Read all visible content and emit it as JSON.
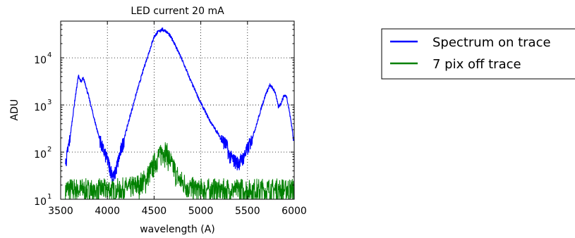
{
  "chart_data": {
    "type": "line",
    "title": "LED current 20 mA",
    "xlabel": "wavelength (A)",
    "ylabel": "ADU",
    "xlim": [
      3500,
      6000
    ],
    "ylim": [
      10,
      60000
    ],
    "yscale": "log",
    "grid": true,
    "legend_placement": "outside-right",
    "x_ticks": [
      3500,
      4000,
      4500,
      5000,
      5500,
      6000
    ],
    "x_tick_labels": [
      "3500",
      "4000",
      "4500",
      "5000",
      "5500",
      "6000"
    ],
    "y_ticks": [
      10,
      100,
      1000,
      10000
    ],
    "y_tick_labels": [
      {
        "base": "10",
        "exp": "1"
      },
      {
        "base": "10",
        "exp": "2"
      },
      {
        "base": "10",
        "exp": "3"
      },
      {
        "base": "10",
        "exp": "4"
      }
    ],
    "series": [
      {
        "name": "Spectrum on trace",
        "color": "#0000ff",
        "x": [
          3550,
          3600,
          3650,
          3690,
          3720,
          3740,
          3760,
          3800,
          3850,
          3900,
          3950,
          4000,
          4040,
          4070,
          4100,
          4150,
          4200,
          4300,
          4400,
          4450,
          4500,
          4540,
          4580,
          4620,
          4650,
          4700,
          4800,
          4900,
          5000,
          5100,
          5200,
          5280,
          5300,
          5350,
          5400,
          5450,
          5500,
          5550,
          5600,
          5650,
          5700,
          5740,
          5760,
          5800,
          5830,
          5860,
          5890,
          5920,
          5950,
          5980,
          5995
        ],
        "y": [
          55,
          200,
          1200,
          4200,
          3000,
          3700,
          3000,
          1500,
          600,
          250,
          120,
          70,
          40,
          30,
          50,
          120,
          280,
          1500,
          7000,
          14000,
          28000,
          35000,
          40000,
          38000,
          33000,
          24000,
          9000,
          3000,
          1100,
          450,
          220,
          140,
          90,
          70,
          60,
          75,
          120,
          200,
          400,
          900,
          1800,
          2600,
          2400,
          1800,
          900,
          1100,
          1600,
          1500,
          700,
          300,
          150
        ]
      },
      {
        "name": "7 pix off trace",
        "color": "#008000",
        "x": [
          3550,
          3700,
          3900,
          4100,
          4200,
          4300,
          4400,
          4450,
          4500,
          4550,
          4600,
          4630,
          4660,
          4700,
          4750,
          4800,
          4900,
          5000,
          5200,
          5400,
          5600,
          5800,
          5995
        ],
        "y": [
          13,
          13,
          13,
          13,
          14,
          15,
          20,
          28,
          45,
          70,
          90,
          80,
          60,
          40,
          25,
          18,
          14,
          13,
          13,
          13,
          13,
          13,
          13
        ]
      }
    ]
  }
}
